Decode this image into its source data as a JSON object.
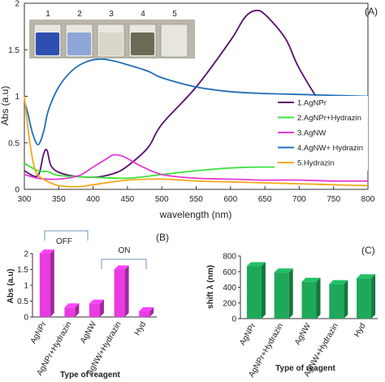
{
  "chart_data": [
    {
      "type": "line",
      "panel_label": "(A)",
      "xlabel": "wavelength (nm)",
      "ylabel": "Abs (a.u)",
      "xlim": [
        300,
        800
      ],
      "ylim": [
        0,
        2
      ],
      "x_ticks": [
        "300",
        "350",
        "400",
        "450",
        "500",
        "550",
        "600",
        "650",
        "700",
        "750",
        "800"
      ],
      "y_ticks": [
        "0",
        "0.5",
        "1",
        "1.5",
        "2"
      ],
      "grid": false,
      "legend_position": "right",
      "inset": {
        "vial_labels": [
          "1",
          "2",
          "3",
          "4",
          "5"
        ],
        "vial_colors": [
          "#2f4fb0",
          "#8fa6d8",
          "#d9d6cc",
          "#6b6a55",
          "#e6e6dc"
        ]
      },
      "series": [
        {
          "name": "1.AgNPr",
          "color": "#5b0f6e",
          "x": [
            300,
            315,
            322,
            328,
            333,
            340,
            360,
            400,
            430,
            450,
            480,
            500,
            550,
            600,
            620,
            635,
            650,
            680,
            700,
            740,
            770,
            800
          ],
          "y": [
            0.2,
            0.14,
            0.18,
            0.38,
            0.42,
            0.24,
            0.16,
            0.13,
            0.17,
            0.25,
            0.45,
            0.7,
            1.1,
            1.6,
            1.84,
            1.92,
            1.88,
            1.62,
            1.3,
            0.82,
            0.52,
            0.42
          ]
        },
        {
          "name": "2.AgNPr+Hydrazin",
          "color": "#3de23d",
          "x": [
            300,
            320,
            335,
            350,
            400,
            450,
            500,
            550,
            600,
            650,
            700,
            750,
            800
          ],
          "y": [
            0.28,
            0.2,
            0.19,
            0.15,
            0.13,
            0.12,
            0.16,
            0.2,
            0.23,
            0.24,
            0.23,
            0.22,
            0.21
          ]
        },
        {
          "name": "3.AgNW",
          "color": "#e23ad6",
          "x": [
            300,
            320,
            350,
            380,
            400,
            420,
            430,
            445,
            470,
            500,
            550,
            600,
            650,
            700,
            750,
            800
          ],
          "y": [
            0.16,
            0.12,
            0.11,
            0.15,
            0.24,
            0.33,
            0.37,
            0.35,
            0.25,
            0.16,
            0.12,
            0.11,
            0.1,
            0.1,
            0.09,
            0.09
          ]
        },
        {
          "name": "4.AgNW+ Hydrazin",
          "color": "#1f6fb8",
          "x": [
            300,
            305,
            312,
            320,
            328,
            335,
            350,
            370,
            390,
            410,
            430,
            450,
            480,
            500,
            550,
            600,
            650,
            700,
            750,
            800
          ],
          "y": [
            0.95,
            0.82,
            0.6,
            0.48,
            0.62,
            0.85,
            1.1,
            1.28,
            1.37,
            1.4,
            1.38,
            1.34,
            1.27,
            1.2,
            1.1,
            1.05,
            1.03,
            1.02,
            1.01,
            1.0
          ]
        },
        {
          "name": "5.Hydrazin",
          "color": "#f2a81c",
          "x": [
            300,
            303,
            308,
            315,
            322,
            330,
            350,
            380,
            400,
            450,
            500,
            550,
            600,
            650,
            700,
            750,
            800
          ],
          "y": [
            1.0,
            0.8,
            0.5,
            0.22,
            0.14,
            0.1,
            0.04,
            0.03,
            0.05,
            0.1,
            0.11,
            0.09,
            0.08,
            0.07,
            0.06,
            0.05,
            0.04
          ]
        }
      ]
    },
    {
      "type": "bar",
      "panel_label": "(B)",
      "xlabel": "Type of reagent",
      "ylabel": "Abs (a.u)",
      "ylim": [
        0,
        2
      ],
      "y_ticks": [
        "0",
        "0.5",
        "1",
        "1.5",
        "2"
      ],
      "color": "#e83be0",
      "categories": [
        "AgNPr",
        "AgNPr+Hydrazin",
        "AgNW",
        "AgNW+Hydrazin",
        "Hyd"
      ],
      "values": [
        2.0,
        0.3,
        0.42,
        1.5,
        0.18
      ],
      "annotations": [
        "OFF",
        "ON"
      ]
    },
    {
      "type": "bar",
      "panel_label": "(C)",
      "xlabel": "Type of reagent",
      "ylabel": "shift λ (nm)",
      "ylim": [
        0,
        800
      ],
      "y_ticks": [
        "0",
        "200",
        "400",
        "600",
        "800"
      ],
      "color": "#1ea85a",
      "categories": [
        "AgNPr",
        "AgNPr+Hydrazin",
        "AgNW",
        "AgNW+Hydrazin",
        "Hyd"
      ],
      "values": [
        670,
        590,
        470,
        440,
        515
      ]
    }
  ]
}
